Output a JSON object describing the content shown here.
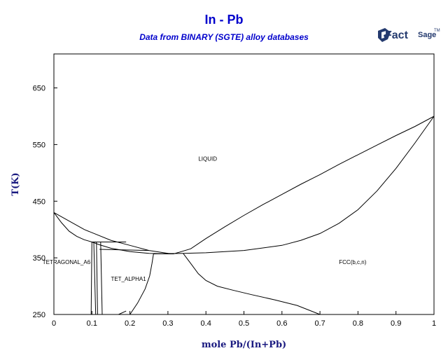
{
  "chart_data": {
    "type": "line",
    "title": "In - Pb",
    "subtitle": "Data from BINARY (SGTE) alloy databases",
    "xlabel": "mole Pb/(In+Pb)",
    "ylabel": "T(K)",
    "xlim": [
      0,
      1
    ],
    "ylim": [
      250,
      710
    ],
    "x_ticks": [
      0,
      0.1,
      0.2,
      0.3,
      0.4,
      0.5,
      0.6,
      0.7,
      0.8,
      0.9,
      1
    ],
    "x_tick_labels": [
      "0",
      "0.1",
      "0.2",
      "0.3",
      "0.4",
      "0.5",
      "0.6",
      "0.7",
      "0.8",
      "0.9",
      "1"
    ],
    "y_ticks": [
      250,
      350,
      450,
      550,
      650
    ],
    "y_tick_labels": [
      "250",
      "350",
      "450",
      "550",
      "650"
    ],
    "series": [
      {
        "x": [
          0,
          0.08,
          0.15,
          0.2,
          0.25,
          0.3,
          0.315
        ],
        "y": [
          430,
          400,
          381,
          372,
          363,
          358,
          357
        ]
      },
      {
        "x": [
          0.315,
          0.36,
          0.4,
          0.45,
          0.5,
          0.55,
          0.6,
          0.65,
          0.7,
          0.75,
          0.8,
          0.85,
          0.9,
          0.95,
          1
        ],
        "y": [
          357,
          366,
          384,
          405,
          425,
          444,
          462,
          480,
          497,
          515,
          532,
          549,
          566,
          582,
          600
        ]
      },
      {
        "x": [
          0,
          0.02,
          0.04,
          0.06,
          0.08,
          0.1,
          0.12,
          0.15,
          0.2,
          0.25,
          0.3,
          0.315
        ],
        "y": [
          430,
          412,
          397,
          388,
          382,
          378,
          373,
          367,
          361,
          358,
          357,
          357
        ]
      },
      {
        "x": [
          0.34,
          0.4,
          0.5,
          0.6,
          0.65,
          0.7,
          0.75,
          0.8,
          0.85,
          0.9,
          0.95,
          1
        ],
        "y": [
          358,
          359,
          363,
          372,
          381,
          393,
          411,
          435,
          468,
          508,
          553,
          600
        ]
      },
      {
        "x": [
          0.1,
          0.125,
          0.19
        ],
        "y": [
          378,
          378,
          378
        ]
      },
      {
        "x": [
          0.12,
          0.25
        ],
        "y": [
          365,
          363
        ]
      },
      {
        "x": [
          0.1,
          0.098
        ],
        "y": [
          378,
          250
        ]
      },
      {
        "x": [
          0.105,
          0.11
        ],
        "y": [
          378,
          250
        ]
      },
      {
        "x": [
          0.112,
          0.115
        ],
        "y": [
          378,
          250
        ]
      },
      {
        "x": [
          0.123,
          0.127
        ],
        "y": [
          378,
          250
        ]
      },
      {
        "x": [
          0.2,
          0.22,
          0.24,
          0.252,
          0.258,
          0.262
        ],
        "y": [
          250,
          270,
          295,
          318,
          340,
          357
        ]
      },
      {
        "x": [
          0.17,
          0.19
        ],
        "y": [
          250,
          256
        ]
      },
      {
        "x": [
          0.262,
          0.34
        ],
        "y": [
          357,
          358
        ]
      },
      {
        "x": [
          0.34,
          0.36,
          0.38,
          0.4,
          0.43,
          0.47,
          0.52,
          0.58,
          0.64,
          0.7
        ],
        "y": [
          358,
          340,
          322,
          310,
          300,
          293,
          285,
          276,
          266,
          250
        ]
      }
    ],
    "annotations": [
      {
        "text": "LIQUID",
        "x": 0.38,
        "y": 525
      },
      {
        "text": "FCC(b,c,n)",
        "x": 0.75,
        "y": 343
      },
      {
        "text": "TETRAGONAL_A6",
        "x": -0.03,
        "y": 343
      },
      {
        "text": "TET_ALPHA1",
        "x": 0.15,
        "y": 313
      }
    ],
    "grid": false
  },
  "logo": {
    "big": "Fact",
    "small": "Sage",
    "tm": "TM"
  }
}
